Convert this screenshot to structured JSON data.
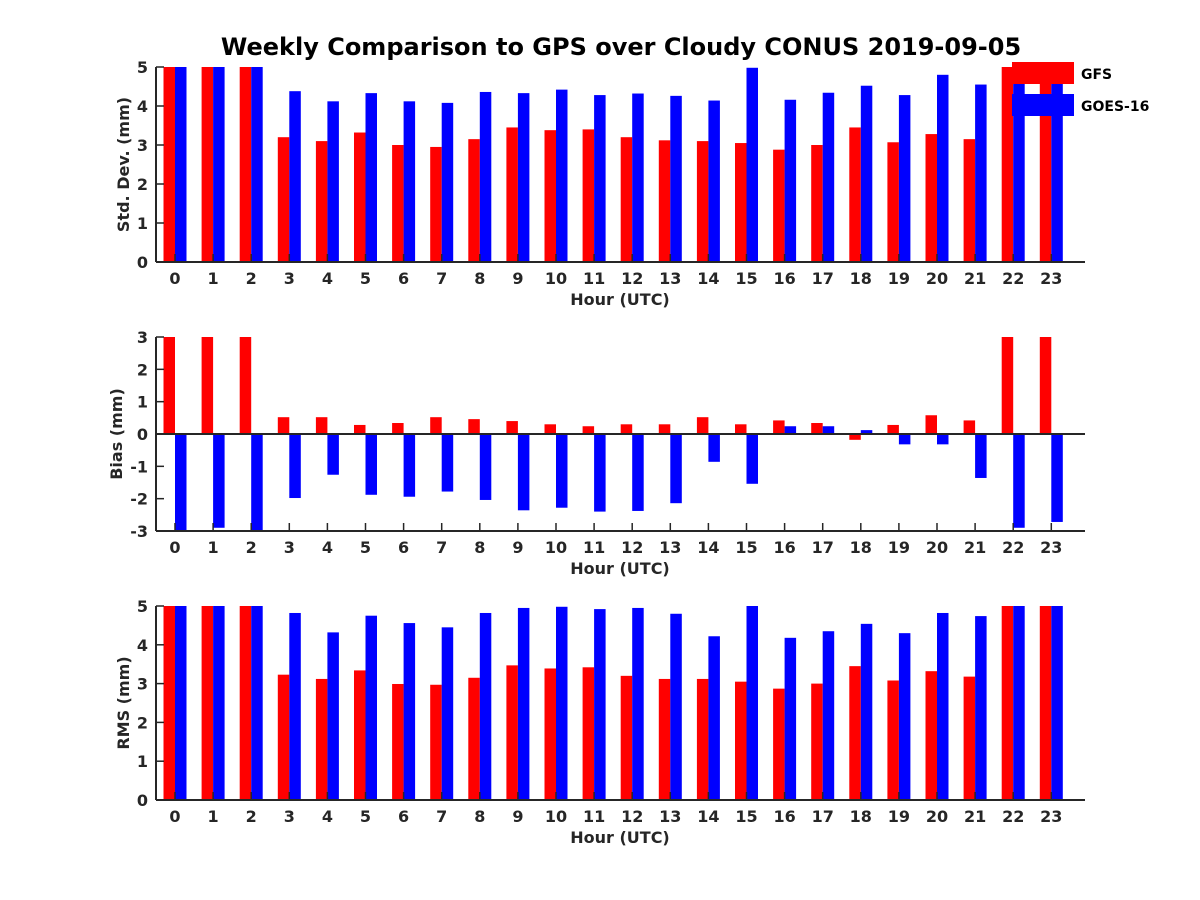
{
  "title": "Weekly Comparison to GPS over Cloudy CONUS 2019-09-05",
  "colors": {
    "GFS": "#ff0000",
    "GOES-16": "#0000ff",
    "axis": "#262626"
  },
  "legend": {
    "placement": "top-right",
    "entries": [
      "GFS",
      "GOES-16"
    ]
  },
  "chart_data": [
    {
      "type": "bar",
      "xlabel": "Hour (UTC)",
      "ylabel": "Std. Dev. (mm)",
      "ylim": [
        0,
        5
      ],
      "yticks": [
        0,
        1,
        2,
        3,
        4,
        5
      ],
      "categories": [
        "0",
        "1",
        "2",
        "3",
        "4",
        "5",
        "6",
        "7",
        "8",
        "9",
        "10",
        "11",
        "12",
        "13",
        "14",
        "15",
        "16",
        "17",
        "18",
        "19",
        "20",
        "21",
        "22",
        "23"
      ],
      "series": [
        {
          "name": "GFS",
          "values": [
            5,
            5,
            5,
            3.2,
            3.1,
            3.32,
            3.0,
            2.95,
            3.15,
            3.45,
            3.38,
            3.4,
            3.2,
            3.12,
            3.1,
            3.05,
            2.88,
            3.0,
            3.45,
            3.07,
            3.28,
            3.15,
            5,
            5
          ]
        },
        {
          "name": "GOES-16",
          "values": [
            5,
            5,
            5,
            4.38,
            4.12,
            4.33,
            4.12,
            4.08,
            4.36,
            4.33,
            4.42,
            4.28,
            4.32,
            4.26,
            4.14,
            4.98,
            4.16,
            4.34,
            4.52,
            4.28,
            4.8,
            4.55,
            5,
            5
          ]
        }
      ]
    },
    {
      "type": "bar",
      "xlabel": "Hour (UTC)",
      "ylabel": "Bias (mm)",
      "ylim": [
        -3,
        3
      ],
      "yticks": [
        -3,
        -2,
        -1,
        0,
        1,
        2,
        3
      ],
      "categories": [
        "0",
        "1",
        "2",
        "3",
        "4",
        "5",
        "6",
        "7",
        "8",
        "9",
        "10",
        "11",
        "12",
        "13",
        "14",
        "15",
        "16",
        "17",
        "18",
        "19",
        "20",
        "21",
        "22",
        "23"
      ],
      "series": [
        {
          "name": "GFS",
          "values": [
            3,
            3,
            3,
            0.52,
            0.52,
            0.28,
            0.34,
            0.52,
            0.46,
            0.4,
            0.3,
            0.24,
            0.3,
            0.3,
            0.52,
            0.3,
            0.42,
            0.34,
            -0.18,
            0.28,
            0.58,
            0.42,
            3,
            3
          ]
        },
        {
          "name": "GOES-16",
          "values": [
            -3,
            -2.9,
            -3,
            -1.98,
            -1.26,
            -1.88,
            -1.94,
            -1.78,
            -2.04,
            -2.36,
            -2.28,
            -2.4,
            -2.38,
            -2.14,
            -0.86,
            -1.54,
            0.24,
            0.24,
            0.12,
            -0.32,
            -0.32,
            -1.36,
            -2.9,
            -2.72
          ]
        }
      ]
    },
    {
      "type": "bar",
      "xlabel": "Hour (UTC)",
      "ylabel": "RMS (mm)",
      "ylim": [
        0,
        5
      ],
      "yticks": [
        0,
        1,
        2,
        3,
        4,
        5
      ],
      "categories": [
        "0",
        "1",
        "2",
        "3",
        "4",
        "5",
        "6",
        "7",
        "8",
        "9",
        "10",
        "11",
        "12",
        "13",
        "14",
        "15",
        "16",
        "17",
        "18",
        "19",
        "20",
        "21",
        "22",
        "23"
      ],
      "series": [
        {
          "name": "GFS",
          "values": [
            5,
            5,
            5,
            3.23,
            3.12,
            3.34,
            2.99,
            2.97,
            3.15,
            3.47,
            3.39,
            3.42,
            3.2,
            3.12,
            3.12,
            3.05,
            2.87,
            3.0,
            3.45,
            3.08,
            3.32,
            3.18,
            5,
            5
          ]
        },
        {
          "name": "GOES-16",
          "values": [
            5,
            5,
            5,
            4.82,
            4.32,
            4.75,
            4.56,
            4.45,
            4.82,
            4.95,
            4.98,
            4.92,
            4.95,
            4.8,
            4.22,
            5,
            4.18,
            4.35,
            4.54,
            4.3,
            4.82,
            4.74,
            5,
            5
          ]
        }
      ]
    }
  ]
}
